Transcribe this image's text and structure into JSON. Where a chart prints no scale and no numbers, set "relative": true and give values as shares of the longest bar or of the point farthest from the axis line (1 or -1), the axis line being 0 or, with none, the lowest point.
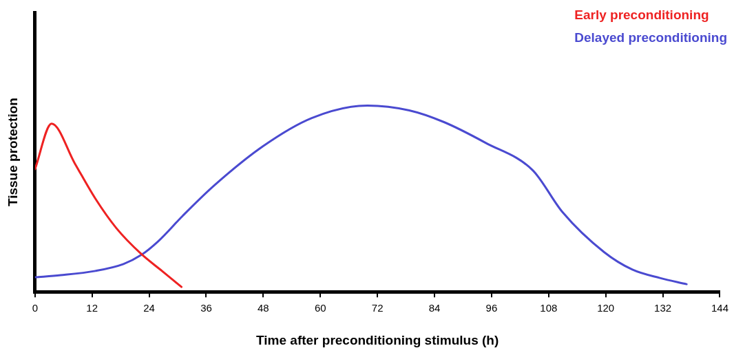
{
  "chart_data": {
    "type": "line",
    "relative": true,
    "xlabel": "Time after preconditioning stimulus (h)",
    "ylabel": "Tissue protection",
    "xlim": [
      0,
      144
    ],
    "xticks": [
      0,
      12,
      24,
      36,
      48,
      60,
      72,
      84,
      96,
      108,
      120,
      132,
      144
    ],
    "tick_labels": "x",
    "grid": false,
    "legend": "top right",
    "marker": "none",
    "line_style": "solid",
    "series": [
      {
        "name": "Early preconditioning",
        "color": "#ee2222",
        "x": [
          0,
          3.5,
          8.4,
          12.7,
          17.1,
          22.3,
          26.7,
          30.8
        ],
        "values": [
          0.658,
          0.903,
          0.688,
          0.5,
          0.342,
          0.204,
          0.112,
          0.026
        ]
      },
      {
        "name": "Delayed preconditioning",
        "color": "#4a4ad0",
        "x": [
          0,
          5.4,
          12.7,
          18.6,
          22.3,
          25.9,
          31.1,
          37.6,
          47.9,
          58.2,
          69.9,
          78.7,
          86,
          94.8,
          104.7,
          110.9,
          119.7,
          125.6,
          131.4,
          137
        ],
        "values": [
          0.078,
          0.089,
          0.112,
          0.149,
          0.197,
          0.271,
          0.409,
          0.569,
          0.781,
          0.933,
          1,
          0.974,
          0.911,
          0.799,
          0.651,
          0.428,
          0.212,
          0.119,
          0.074,
          0.041
        ]
      }
    ]
  }
}
